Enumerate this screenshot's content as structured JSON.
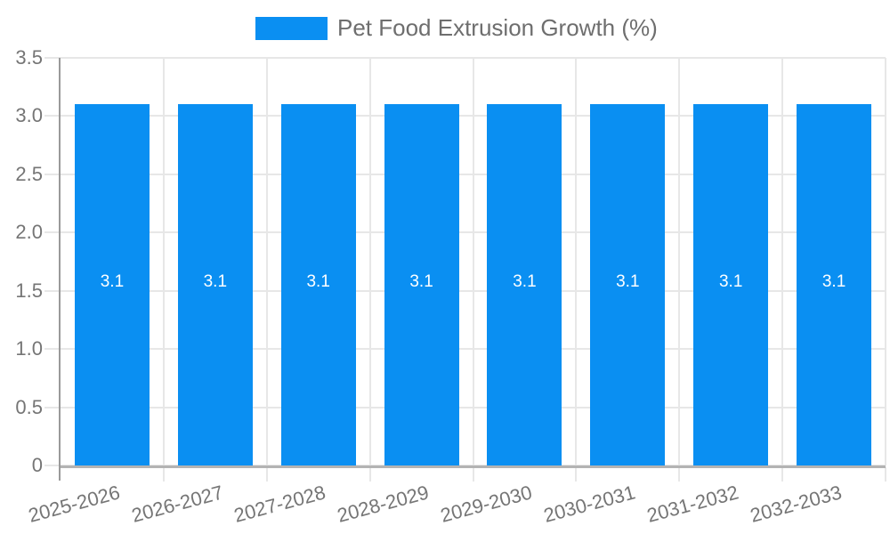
{
  "legend": {
    "label": "Pet Food Extrusion Growth (%)",
    "position": "top-center"
  },
  "colors": {
    "bar": "#0a8ff2",
    "bar_label_text": "#ffffff",
    "legend_text": "#6e6e6e",
    "axis_tick_text": "#757575",
    "gridline": "#e7e7e7",
    "x_axis_line": "#b3b3b3",
    "y_axis_line": "#9a9a9a",
    "background": "#ffffff"
  },
  "chart_data": {
    "type": "bar",
    "title": "Pet Food Extrusion Growth (%)",
    "categories": [
      "2025-2026",
      "2026-2027",
      "2027-2028",
      "2028-2029",
      "2029-2030",
      "2030-2031",
      "2031-2032",
      "2032-2033"
    ],
    "values": [
      3.1,
      3.1,
      3.1,
      3.1,
      3.1,
      3.1,
      3.1,
      3.1
    ],
    "bar_labels": [
      "3.1",
      "3.1",
      "3.1",
      "3.1",
      "3.1",
      "3.1",
      "3.1",
      "3.1"
    ],
    "series_name": "Pet Food Extrusion Growth (%)",
    "xlabel": "",
    "ylabel": "",
    "ylim": [
      0,
      3.5
    ],
    "ytick_step": 0.5,
    "ytick_labels": [
      "0",
      "0.5",
      "1.0",
      "1.5",
      "2.0",
      "2.5",
      "3.0",
      "3.5"
    ],
    "grid": true,
    "vertical_gridlines": true,
    "legend_position": "top",
    "x_tick_label_rotation_deg": 15
  }
}
